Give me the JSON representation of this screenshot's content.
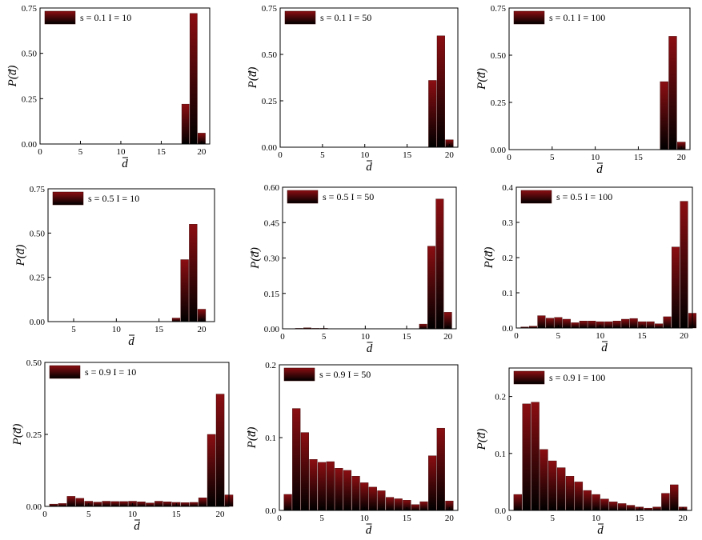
{
  "colors": {
    "bar_top": "#8B0E12",
    "bar_bottom": "#000000",
    "bar_edge": "#3a0000",
    "frame": "#000000"
  },
  "chart_data": [
    {
      "type": "bar",
      "legend": "s = 0.1 I = 10",
      "ylabel": "P(d)",
      "xlabel": "d",
      "xlim": [
        0,
        21
      ],
      "ylim": [
        0,
        0.75
      ],
      "xticks": [
        0,
        5,
        10,
        15,
        20
      ],
      "yticks": [
        0.0,
        0.25,
        0.5,
        0.75
      ],
      "ytick_labels": [
        "0.00",
        "0.25",
        "0.50",
        "0.75"
      ],
      "x": [
        18,
        19,
        20
      ],
      "values": [
        0.22,
        0.72,
        0.06
      ]
    },
    {
      "type": "bar",
      "legend": "s = 0.1 I = 50",
      "ylabel": "P(d)",
      "xlabel": "d",
      "xlim": [
        0,
        21
      ],
      "ylim": [
        0,
        0.75
      ],
      "xticks": [
        0,
        5,
        10,
        15,
        20
      ],
      "yticks": [
        0.0,
        0.25,
        0.5,
        0.75
      ],
      "ytick_labels": [
        "0.00",
        "0.25",
        "0.50",
        "0.75"
      ],
      "x": [
        18,
        19,
        20
      ],
      "values": [
        0.36,
        0.6,
        0.04
      ]
    },
    {
      "type": "bar",
      "legend": "s = 0.1 I = 100",
      "ylabel": "P(d)",
      "xlabel": "d",
      "xlim": [
        0,
        21
      ],
      "ylim": [
        0,
        0.75
      ],
      "xticks": [
        0,
        5,
        10,
        15,
        20
      ],
      "yticks": [
        0.0,
        0.25,
        0.5,
        0.75
      ],
      "ytick_labels": [
        "0.00",
        "0.25",
        "0.50",
        "0.75"
      ],
      "x": [
        18,
        19,
        20
      ],
      "values": [
        0.36,
        0.6,
        0.04
      ]
    },
    {
      "type": "bar",
      "legend": "s = 0.5 I = 10",
      "ylabel": "P(d)",
      "xlabel": "d",
      "xlim": [
        2,
        21.5
      ],
      "ylim": [
        0,
        0.75
      ],
      "xticks": [
        5,
        10,
        15,
        20
      ],
      "yticks": [
        0.0,
        0.25,
        0.5,
        0.75
      ],
      "ytick_labels": [
        "0.00",
        "0.25",
        "0.50",
        "0.75"
      ],
      "x": [
        17,
        18,
        19,
        20
      ],
      "values": [
        0.02,
        0.35,
        0.55,
        0.07
      ]
    },
    {
      "type": "bar",
      "legend": "s = 0.5 I = 50",
      "ylabel": "P(d)",
      "xlabel": "d",
      "xlim": [
        0,
        21
      ],
      "ylim": [
        0,
        0.6
      ],
      "xticks": [
        0,
        5,
        10,
        15,
        20
      ],
      "yticks": [
        0.0,
        0.15,
        0.3,
        0.45,
        0.6
      ],
      "ytick_labels": [
        "0.00",
        "0.15",
        "0.30",
        "0.45",
        "0.60"
      ],
      "x": [
        2,
        3,
        4,
        5,
        17,
        18,
        19,
        20
      ],
      "values": [
        0.002,
        0.004,
        0.002,
        0.002,
        0.02,
        0.35,
        0.55,
        0.07
      ]
    },
    {
      "type": "bar",
      "legend": "s = 0.5 I = 100",
      "ylabel": "P(d)",
      "xlabel": "d",
      "xlim": [
        0,
        21
      ],
      "ylim": [
        0,
        0.4
      ],
      "xticks": [
        0,
        5,
        10,
        15,
        20
      ],
      "yticks": [
        0.0,
        0.1,
        0.2,
        0.3,
        0.4
      ],
      "ytick_labels": [
        "0.0",
        "0.1",
        "0.2",
        "0.3",
        "0.4"
      ],
      "x": [
        1,
        2,
        3,
        4,
        5,
        6,
        7,
        8,
        9,
        10,
        11,
        12,
        13,
        14,
        15,
        16,
        17,
        18,
        19,
        20,
        21
      ],
      "values": [
        0.003,
        0.005,
        0.035,
        0.028,
        0.03,
        0.025,
        0.015,
        0.02,
        0.02,
        0.018,
        0.018,
        0.02,
        0.025,
        0.027,
        0.018,
        0.018,
        0.012,
        0.032,
        0.23,
        0.36,
        0.042
      ]
    },
    {
      "type": "bar",
      "legend": "s = 0.9 I = 10",
      "ylabel": "P(d)",
      "xlabel": "d",
      "xlim": [
        0,
        21
      ],
      "ylim": [
        0,
        0.5
      ],
      "xticks": [
        0,
        5,
        10,
        15,
        20
      ],
      "yticks": [
        0.0,
        0.25,
        0.5
      ],
      "ytick_labels": [
        "0.00",
        "0.25",
        "0.50"
      ],
      "x": [
        1,
        2,
        3,
        4,
        5,
        6,
        7,
        8,
        9,
        10,
        11,
        12,
        13,
        14,
        15,
        16,
        17,
        18,
        19,
        20,
        21
      ],
      "values": [
        0.008,
        0.01,
        0.035,
        0.028,
        0.018,
        0.015,
        0.018,
        0.017,
        0.017,
        0.018,
        0.016,
        0.012,
        0.018,
        0.016,
        0.014,
        0.013,
        0.014,
        0.03,
        0.25,
        0.39,
        0.04
      ]
    },
    {
      "type": "bar",
      "legend": "s = 0.9 I = 50",
      "ylabel": "P(d)",
      "xlabel": "d",
      "xlim": [
        0,
        21
      ],
      "ylim": [
        0,
        0.2
      ],
      "xticks": [
        0,
        5,
        10,
        15,
        20
      ],
      "yticks": [
        0.0,
        0.1,
        0.2
      ],
      "ytick_labels": [
        "0.0",
        "0.1",
        "0.2"
      ],
      "x": [
        1,
        2,
        3,
        4,
        5,
        6,
        7,
        8,
        9,
        10,
        11,
        12,
        13,
        14,
        15,
        16,
        17,
        18,
        19,
        20,
        21
      ],
      "values": [
        0.022,
        0.14,
        0.107,
        0.07,
        0.066,
        0.067,
        0.058,
        0.055,
        0.047,
        0.038,
        0.032,
        0.027,
        0.018,
        0.016,
        0.014,
        0.008,
        0.012,
        0.075,
        0.113,
        0.013,
        0.0
      ]
    },
    {
      "type": "bar",
      "legend": "s = 0.9 I = 100",
      "ylabel": "P(d)",
      "xlabel": "d",
      "xlim": [
        0,
        21
      ],
      "ylim": [
        0,
        0.25
      ],
      "xticks": [
        0,
        5,
        10,
        15,
        20
      ],
      "yticks": [
        0.0,
        0.1,
        0.2
      ],
      "ytick_labels": [
        "0.0",
        "0.1",
        "0.2"
      ],
      "x": [
        1,
        2,
        3,
        4,
        5,
        6,
        7,
        8,
        9,
        10,
        11,
        12,
        13,
        14,
        15,
        16,
        17,
        18,
        19,
        20,
        21
      ],
      "values": [
        0.028,
        0.187,
        0.19,
        0.107,
        0.087,
        0.075,
        0.06,
        0.05,
        0.035,
        0.028,
        0.02,
        0.015,
        0.012,
        0.009,
        0.006,
        0.004,
        0.006,
        0.03,
        0.045,
        0.006,
        0.0
      ]
    }
  ]
}
